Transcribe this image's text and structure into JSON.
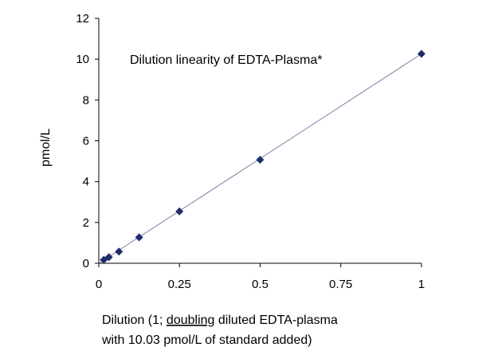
{
  "chart_data": {
    "type": "scatter",
    "title": "Dilution linearity of EDTA-Plasma*",
    "ylabel": "pmol/L",
    "xlabel": {
      "line1_prefix": "Dilution (1; ",
      "line1_underlined": "doubling",
      "line1_suffix": " diluted EDTA-plasma",
      "line2": "with 10.03 pmol/L of standard added)"
    },
    "xlim": [
      0,
      1
    ],
    "ylim": [
      0,
      12
    ],
    "x_ticks": [
      0,
      0.25,
      0.5,
      0.75,
      1
    ],
    "x_tick_labels": [
      "0",
      "0.25",
      "0.5",
      "0.75",
      "1"
    ],
    "y_ticks": [
      0,
      2,
      4,
      6,
      8,
      10,
      12
    ],
    "y_tick_labels": [
      "0",
      "2",
      "4",
      "6",
      "8",
      "10",
      "12"
    ],
    "grid": false,
    "series": [
      {
        "x": [
          0.015625,
          0.03125,
          0.0625,
          0.125,
          0.25,
          0.5,
          1
        ],
        "y": [
          0.17,
          0.3,
          0.57,
          1.27,
          2.54,
          5.07,
          10.26
        ],
        "color": "#1f2d6b",
        "marker": "diamond"
      }
    ],
    "trendline": {
      "x": [
        0,
        1
      ],
      "y": [
        0.0,
        10.26
      ],
      "color": "#7a7fa8"
    }
  }
}
